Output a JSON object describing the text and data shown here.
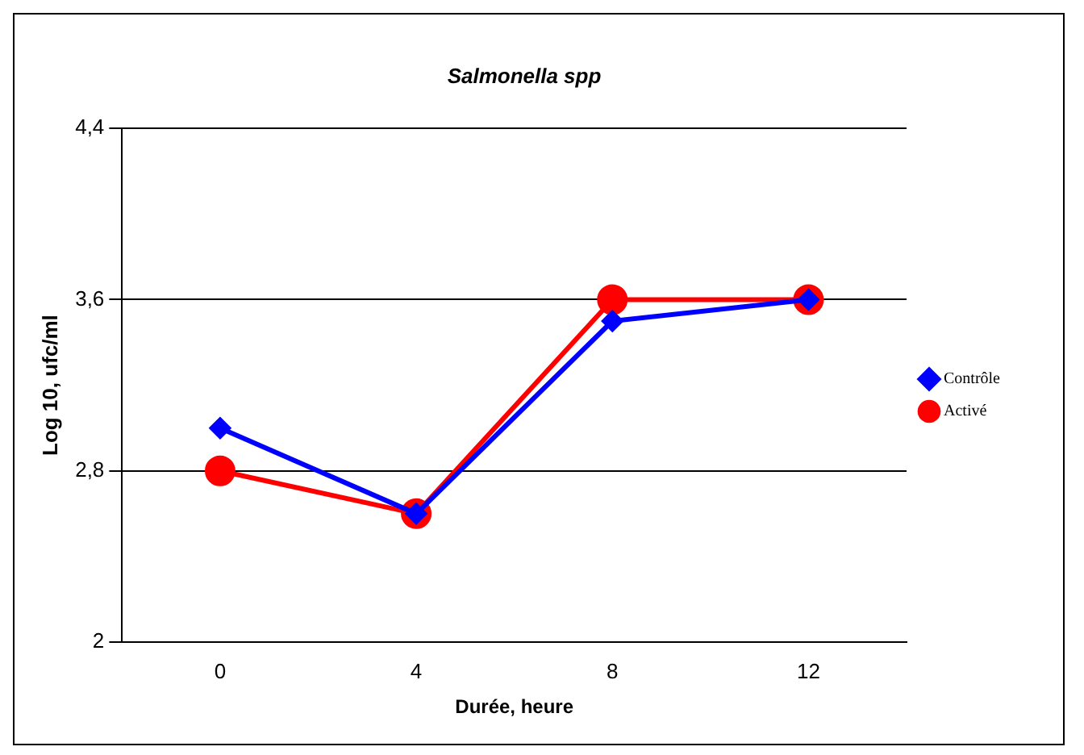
{
  "chart_data": {
    "type": "line",
    "title": "Salmonella spp",
    "xlabel": "Durée, heure",
    "ylabel": "Log 10, ufc/ml",
    "categories": [
      "0",
      "4",
      "8",
      "12"
    ],
    "series": [
      {
        "name": "Contrôle",
        "color": "#0000ff",
        "values": [
          3.0,
          2.6,
          3.5,
          3.6
        ],
        "marker": "diamond"
      },
      {
        "name": "Activé",
        "color": "#ff0000",
        "values": [
          2.8,
          2.6,
          3.6,
          3.6
        ],
        "marker": "circle"
      }
    ],
    "ylim": [
      2,
      4.4
    ],
    "yticks": [
      {
        "value": 2,
        "label": "2"
      },
      {
        "value": 2.8,
        "label": "2,8"
      },
      {
        "value": 3.6,
        "label": "3,6"
      },
      {
        "value": 4.4,
        "label": "4,4"
      }
    ],
    "grid": "y",
    "legend": "right",
    "line_style": "solid"
  }
}
